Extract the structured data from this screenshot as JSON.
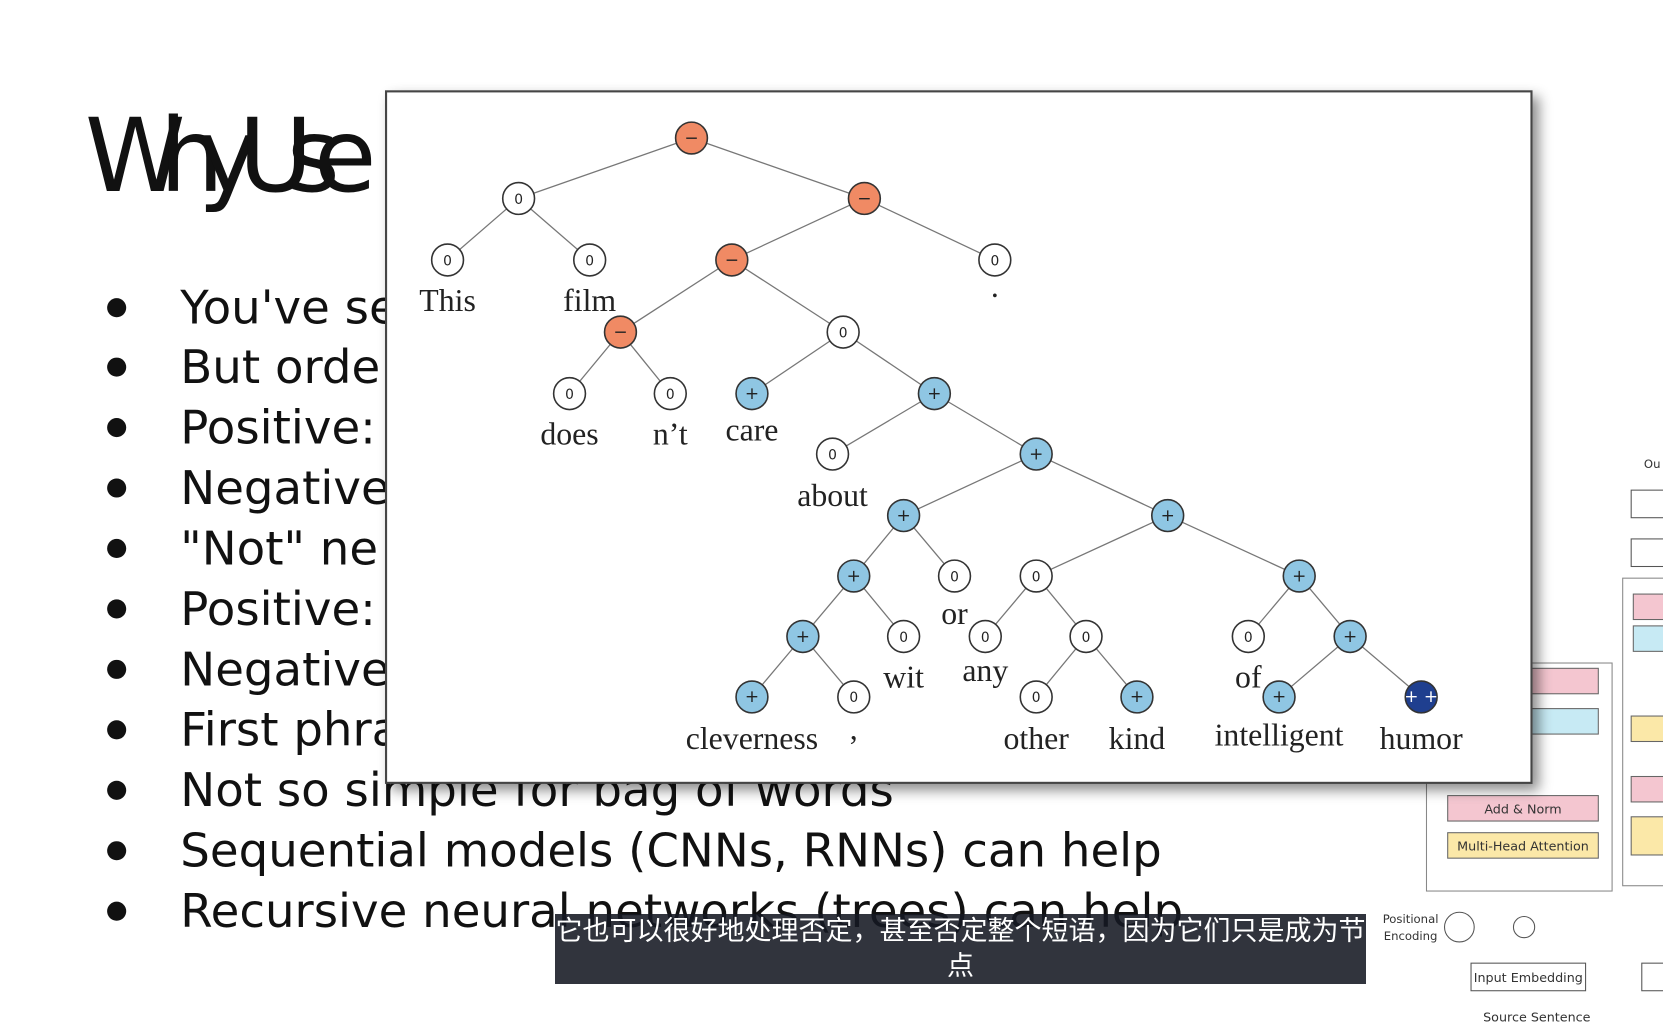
{
  "slide": {
    "title": "Why Use",
    "bullets": [
      "You've se",
      "But orde",
      "Positive:",
      "Negative",
      "\"Not\" ne",
      "Positive:",
      "Negative",
      "First phra",
      "Not so simple for bag of words",
      "Sequential models (CNNs, RNNs) can help",
      "Recursive neural networks (trees) can help"
    ]
  },
  "tree": {
    "nodes": [
      {
        "label": "−"
      },
      {
        "label": "0"
      },
      {
        "label": "−"
      },
      {
        "label": "0"
      },
      {
        "label": "0"
      },
      {
        "label": "−"
      },
      {
        "label": "0"
      },
      {
        "label": "−"
      },
      {
        "label": "0"
      },
      {
        "label": "0"
      },
      {
        "label": "0"
      },
      {
        "label": "+"
      },
      {
        "label": "+"
      },
      {
        "label": "0"
      },
      {
        "label": "+"
      },
      {
        "label": "+"
      },
      {
        "label": "+"
      },
      {
        "label": "+"
      },
      {
        "label": "0"
      },
      {
        "label": "0"
      },
      {
        "label": "+"
      },
      {
        "label": "+"
      },
      {
        "label": "0"
      },
      {
        "label": "0"
      },
      {
        "label": "0"
      },
      {
        "label": "0"
      },
      {
        "label": "+"
      },
      {
        "label": "+"
      },
      {
        "label": "0"
      },
      {
        "label": "0"
      },
      {
        "label": "+"
      },
      {
        "label": "+"
      },
      {
        "label": "+ +"
      }
    ],
    "words": [
      "This",
      "film",
      ".",
      "does",
      "n’t",
      "care",
      "about",
      "or",
      "wit",
      "any",
      "cleverness",
      ",",
      "other",
      "kind",
      "of",
      "intelligent",
      "humor"
    ]
  },
  "transformer": {
    "labels": [
      "Add & Norm",
      "Multi-Head Attention",
      "Positional",
      "Encoding",
      "Input Embedding",
      "Source Sentence",
      "Ou"
    ]
  },
  "subtitle": "它也可以很好地处理否定，甚至否定整个短语，因为它们只是成为节点"
}
